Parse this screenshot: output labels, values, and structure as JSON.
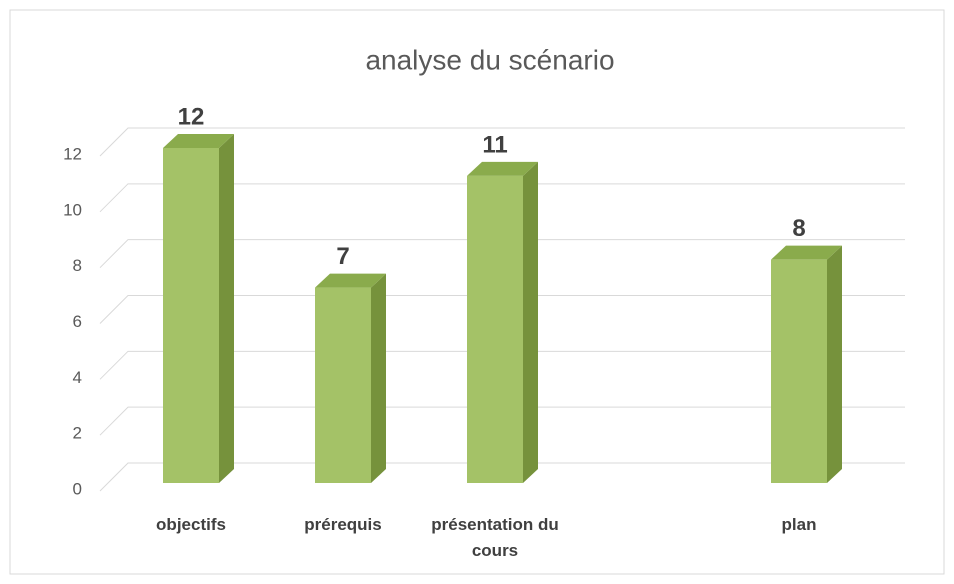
{
  "chart_data": {
    "type": "bar3d",
    "title": "analyse du scénario",
    "categories": [
      "objectifs",
      "prérequis",
      "présentation du cours",
      null,
      "plan"
    ],
    "values": [
      12,
      7,
      11,
      null,
      8
    ],
    "color": "#a4c267",
    "ylim": [
      0,
      12
    ],
    "yticks": [
      0,
      2,
      4,
      6,
      8,
      10,
      12
    ],
    "grid": true
  }
}
